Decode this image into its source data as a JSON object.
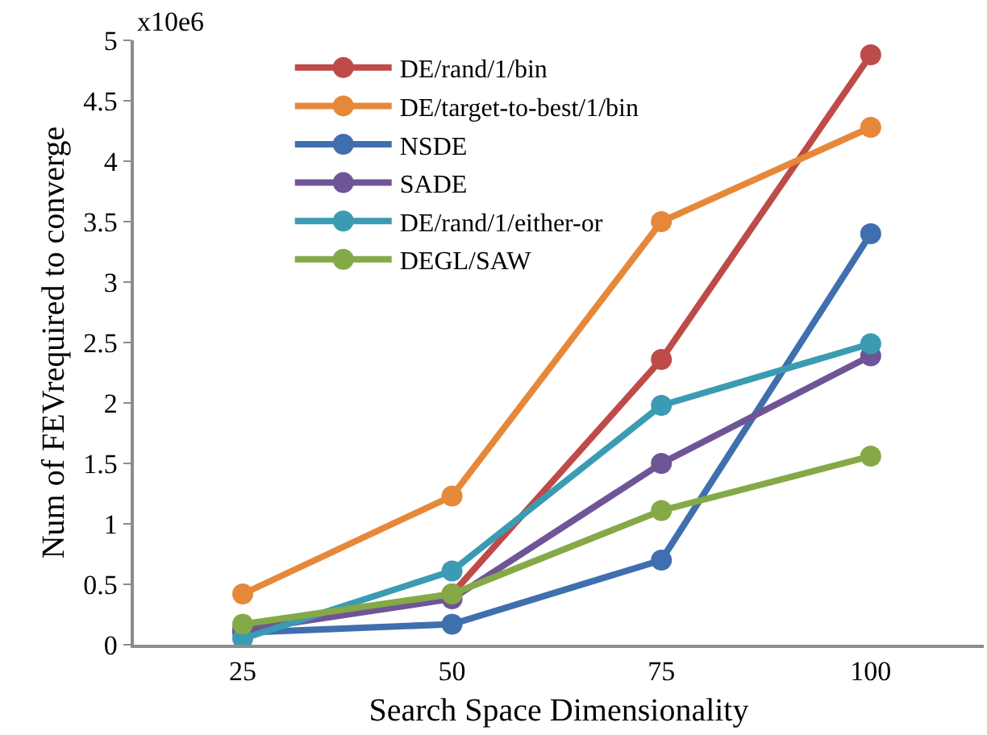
{
  "chart_data": {
    "type": "line",
    "xlabel": "Search Space Dimensionality",
    "ylabel": "Num of FEVrequired to converge",
    "annotations": [
      "x10e6"
    ],
    "categories": [
      "25",
      "50",
      "75",
      "100"
    ],
    "series": [
      {
        "name": "DE/rand/1/bin",
        "color": "#be4b48",
        "values": [
          0.12,
          0.42,
          2.36,
          4.88
        ]
      },
      {
        "name": "DE/target-to-best/1/bin",
        "color": "#e6883a",
        "values": [
          0.42,
          1.23,
          3.5,
          4.28
        ]
      },
      {
        "name": "NSDE",
        "color": "#3f6fae",
        "values": [
          0.1,
          0.17,
          0.7,
          3.4
        ]
      },
      {
        "name": "SADE",
        "color": "#6f5597",
        "values": [
          0.12,
          0.38,
          1.5,
          2.39
        ]
      },
      {
        "name": "DE/rand/1/either-or",
        "color": "#3b9bb3",
        "values": [
          0.05,
          0.61,
          1.98,
          2.49
        ]
      },
      {
        "name": "DEGL/SAW",
        "color": "#85a947",
        "values": [
          0.17,
          0.42,
          1.11,
          1.56
        ]
      }
    ],
    "ylim": [
      0,
      5
    ],
    "yticks": [
      0,
      0.5,
      1,
      1.5,
      2,
      2.5,
      3,
      3.5,
      4,
      4.5,
      5
    ],
    "legend": "top left",
    "marker": "circle",
    "line_style": "solid"
  }
}
